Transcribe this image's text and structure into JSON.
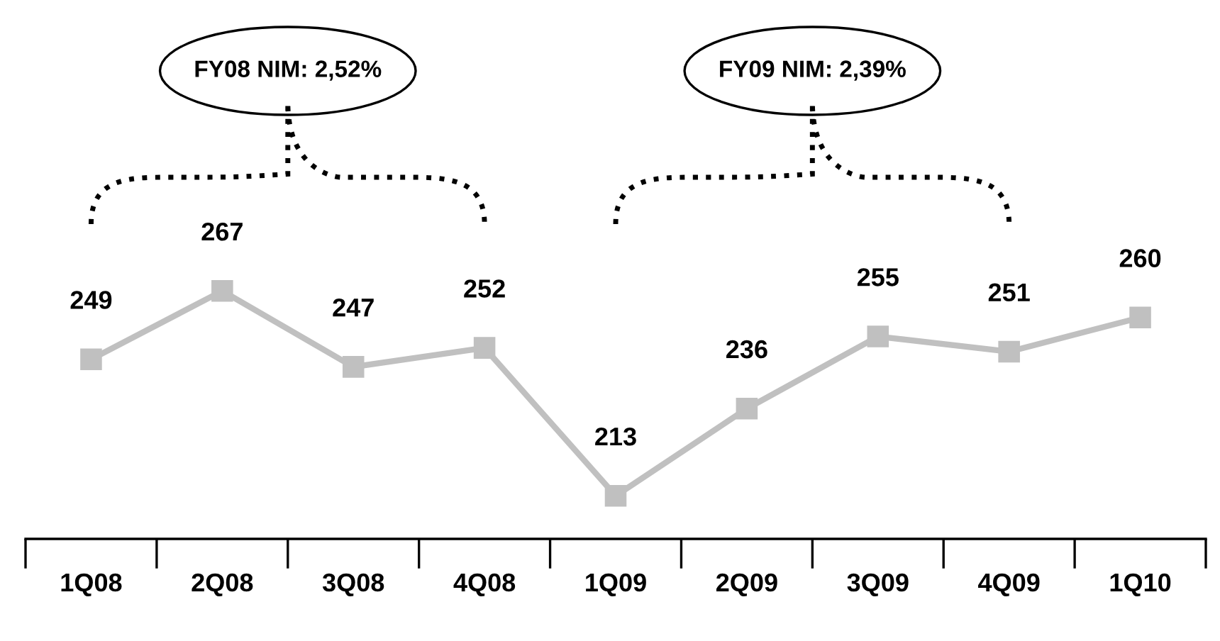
{
  "chart_data": {
    "type": "line",
    "categories": [
      "1Q08",
      "2Q08",
      "3Q08",
      "4Q08",
      "1Q09",
      "2Q09",
      "3Q09",
      "4Q09",
      "1Q10"
    ],
    "series": [
      {
        "color": "#c0c0c0",
        "values": [
          249,
          267,
          247,
          252,
          213,
          236,
          255,
          251,
          260
        ]
      }
    ],
    "marker": "square",
    "line_style": "solid",
    "data_labels": true,
    "grid": false,
    "legend": false,
    "tick_labels": "x",
    "annotations": [
      "FY08 NIM: 2,52%",
      "FY09 NIM: 2,39%"
    ]
  }
}
